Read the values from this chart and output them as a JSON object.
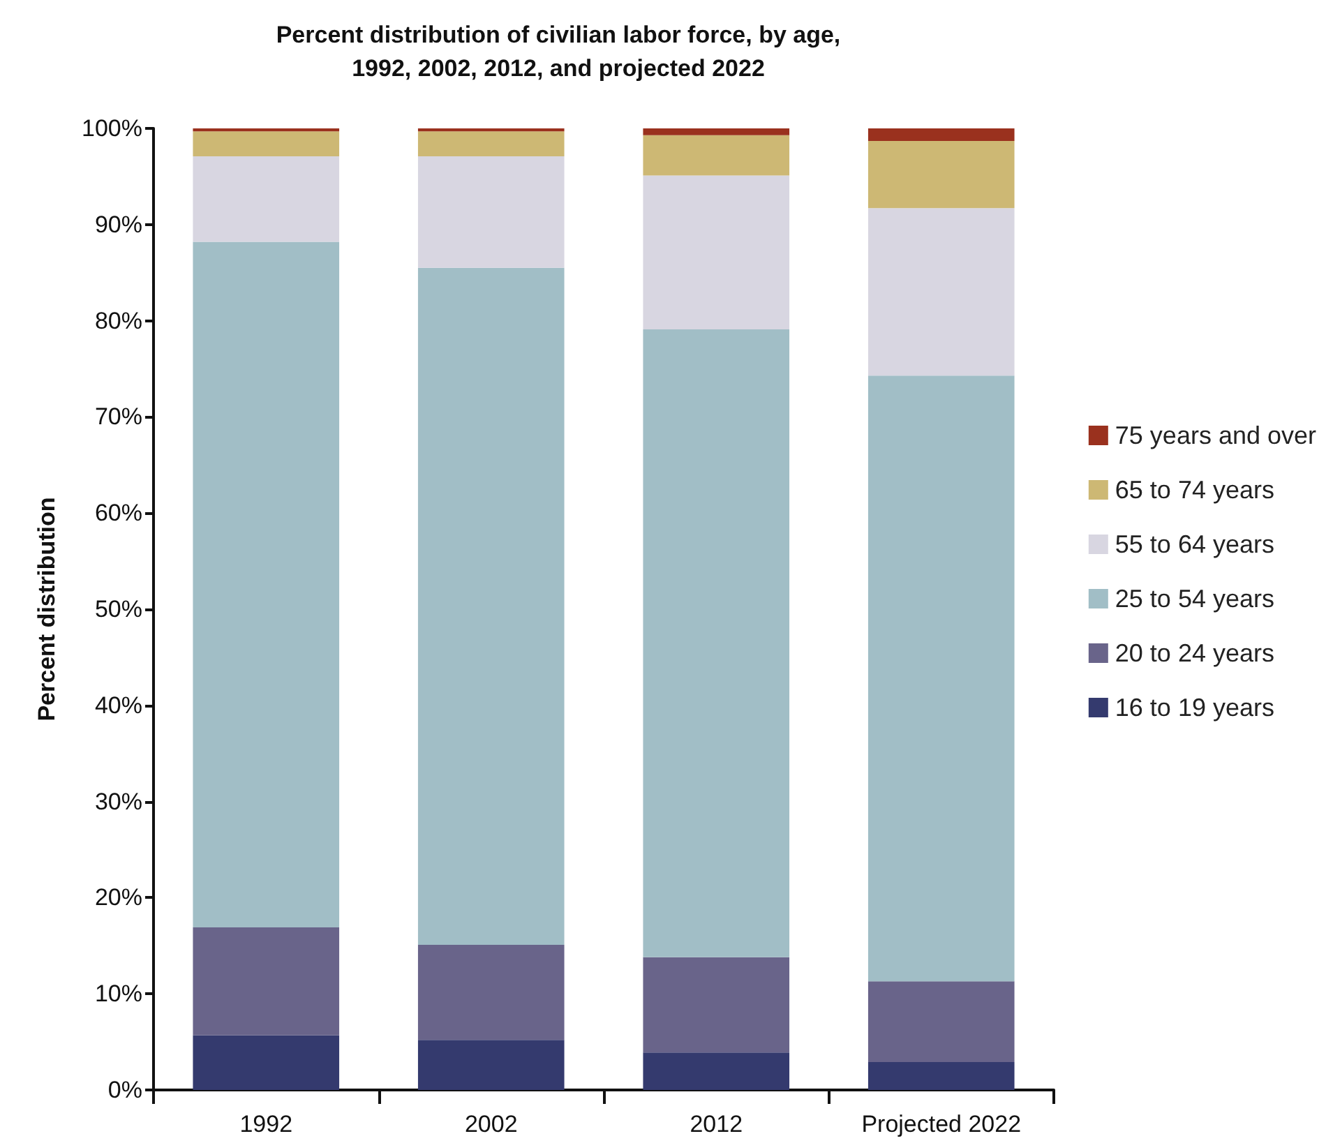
{
  "chart_data": {
    "type": "bar",
    "title": "Percent distribution of civilian labor force, by age,\n1992, 2002, 2012, and projected 2022",
    "ylabel": "Percent distribution",
    "categories": [
      "1992",
      "2002",
      "2012",
      "Projected 2022"
    ],
    "stacked": true,
    "legend": "right",
    "grid": false,
    "ylim": [
      0,
      100
    ],
    "yticks": [
      {
        "value": 0,
        "label": "0%"
      },
      {
        "value": 10,
        "label": "10%"
      },
      {
        "value": 20,
        "label": "20%"
      },
      {
        "value": 30,
        "label": "30%"
      },
      {
        "value": 40,
        "label": "40%"
      },
      {
        "value": 50,
        "label": "50%"
      },
      {
        "value": 60,
        "label": "60%"
      },
      {
        "value": 70,
        "label": "70%"
      },
      {
        "value": 80,
        "label": "80%"
      },
      {
        "value": 90,
        "label": "90%"
      },
      {
        "value": 100,
        "label": "100%"
      }
    ],
    "series": [
      {
        "name": "16 to 19 years",
        "color": "#343a6e",
        "values": [
          5.7,
          5.2,
          3.9,
          2.9
        ]
      },
      {
        "name": "20 to 24 years",
        "color": "#69648a",
        "values": [
          11.2,
          9.9,
          9.9,
          8.4
        ]
      },
      {
        "name": "25 to 54 years",
        "color": "#a1bec6",
        "values": [
          71.3,
          70.4,
          65.3,
          63.0
        ]
      },
      {
        "name": "55 to 64 years",
        "color": "#d8d6e1",
        "values": [
          8.9,
          11.6,
          16.0,
          17.4
        ]
      },
      {
        "name": "65 to 74 years",
        "color": "#cdb874",
        "values": [
          2.6,
          2.6,
          4.2,
          7.0
        ]
      },
      {
        "name": "75 years and over",
        "color": "#9a311e",
        "values": [
          0.3,
          0.3,
          0.7,
          1.3
        ]
      }
    ]
  }
}
